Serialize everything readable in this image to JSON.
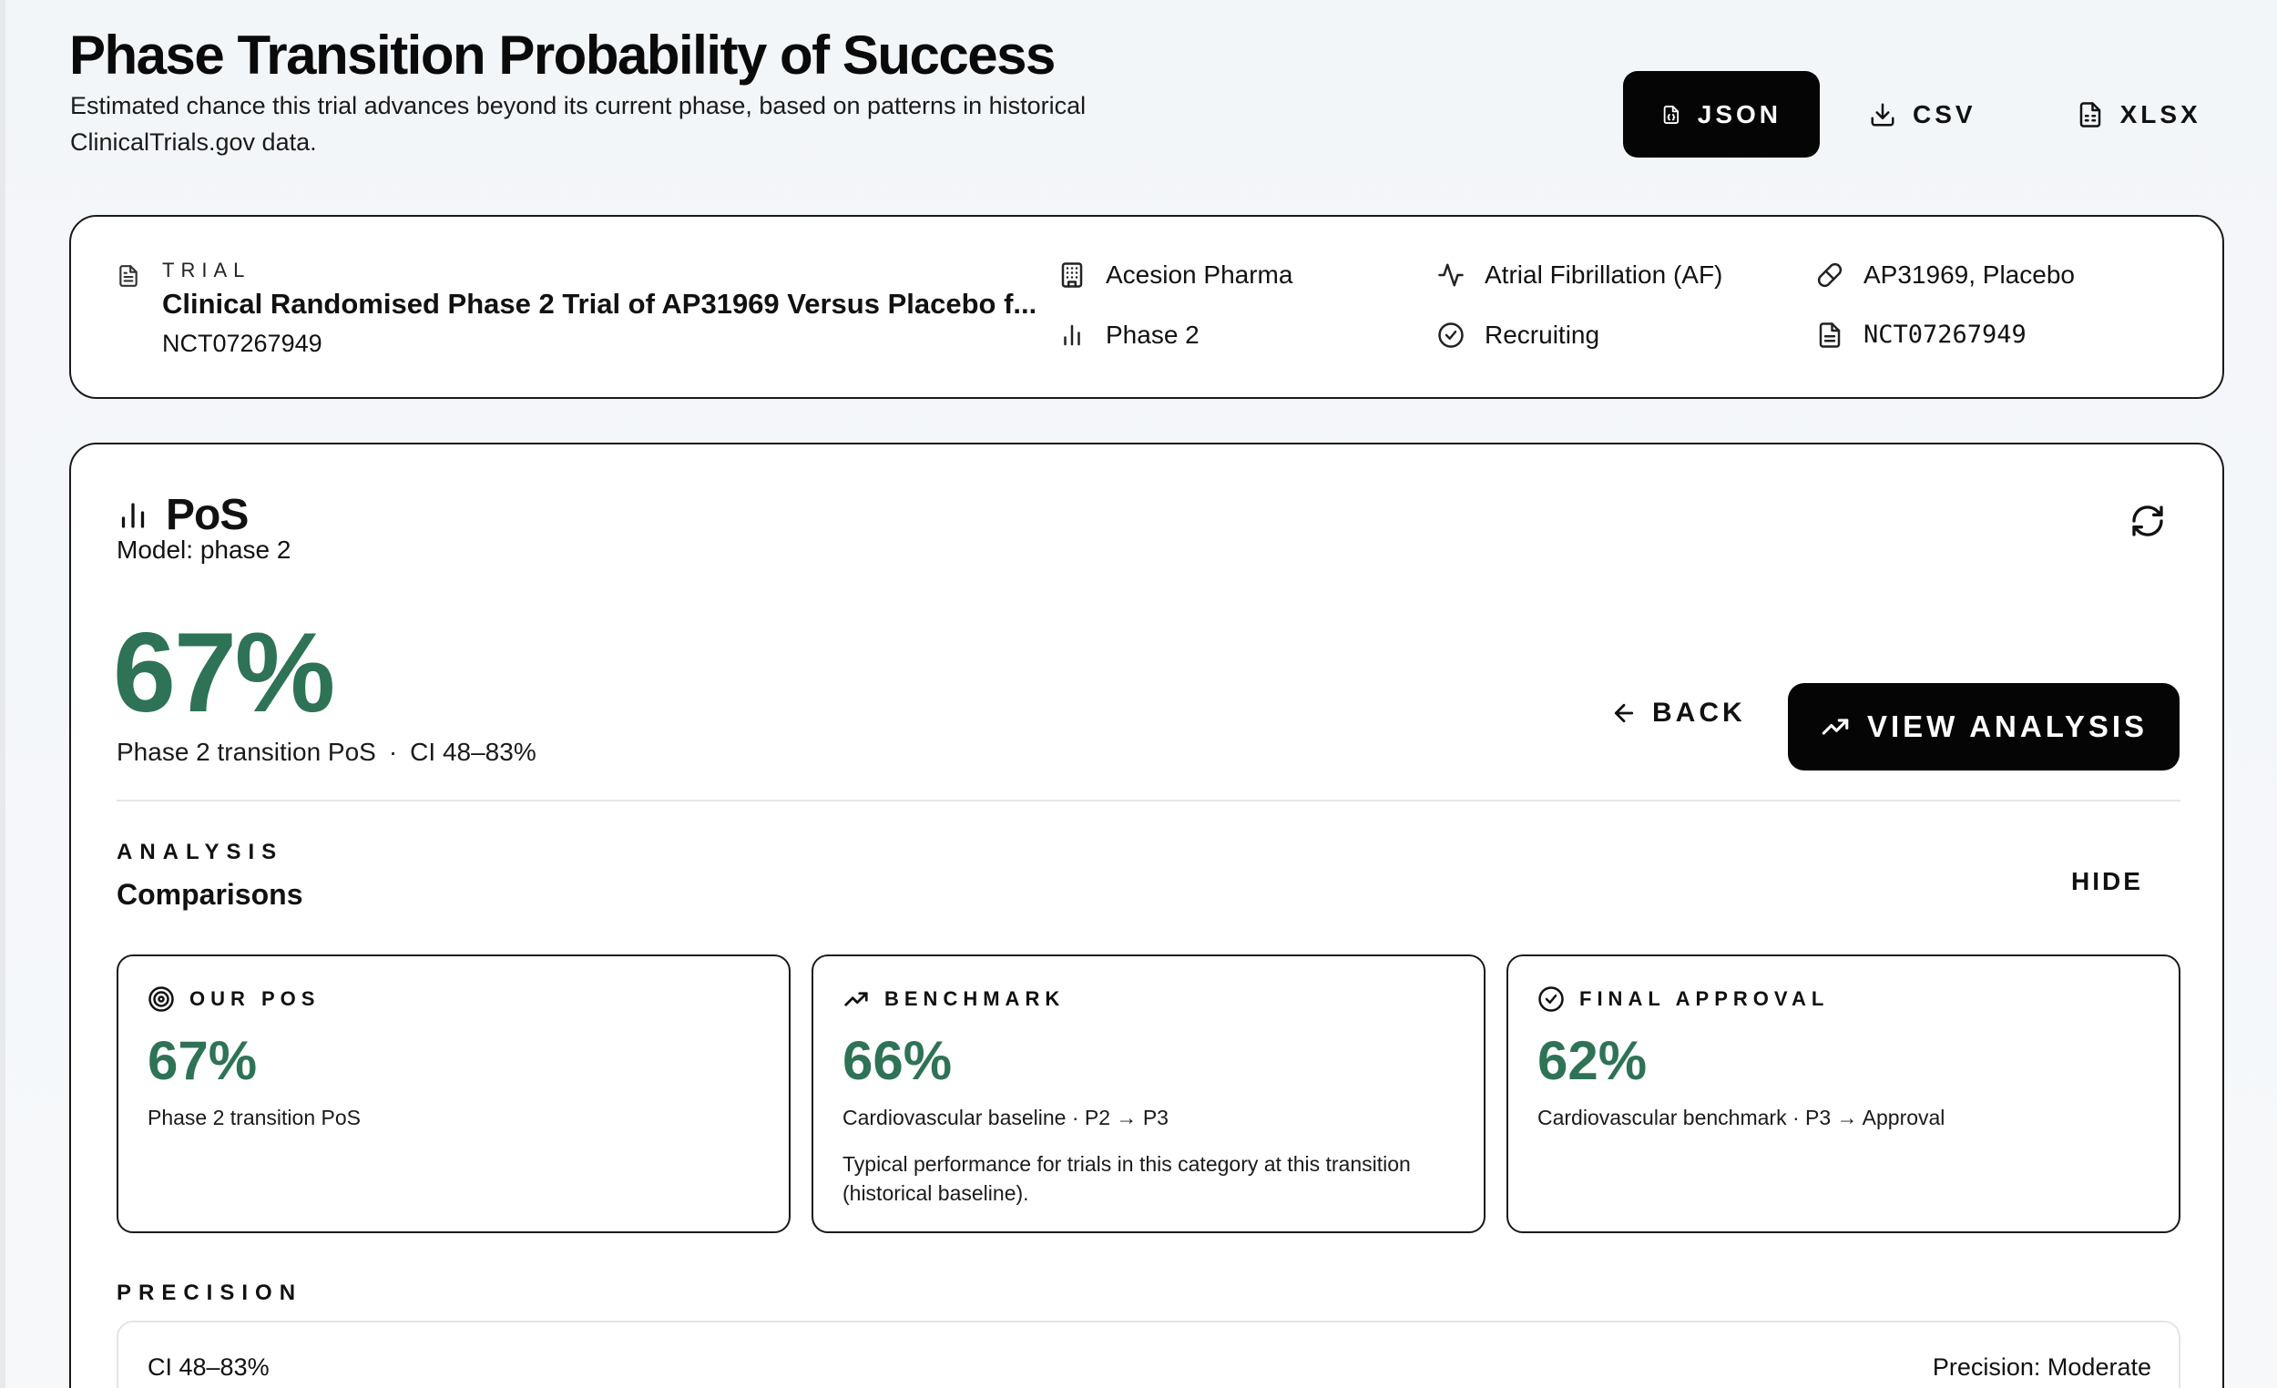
{
  "header": {
    "title": "Phase Transition Probability of Success",
    "subtitle": "Estimated chance this trial advances beyond its current phase, based on patterns in historical ClinicalTrials.gov data."
  },
  "export": {
    "json_label": "JSON",
    "csv_label": "CSV",
    "xlsx_label": "XLSX"
  },
  "trial": {
    "section_label": "TRIAL",
    "name": "Clinical Randomised Phase 2 Trial of AP31969 Versus Placebo f...",
    "nct_id": "NCT07267949",
    "sponsor": "Acesion Pharma",
    "phase": "Phase 2",
    "condition": "Atrial Fibrillation (AF)",
    "status": "Recruiting",
    "interventions": "AP31969, Placebo",
    "registry_id": "NCT07267949"
  },
  "pos": {
    "title": "PoS",
    "model": "Model: phase 2",
    "value": "67%",
    "caption": "Phase 2 transition PoS",
    "caption_sep": "·",
    "ci": "CI 48–83%",
    "back_label": "BACK",
    "view_label": "VIEW ANALYSIS"
  },
  "analysis": {
    "section_label": "ANALYSIS",
    "title": "Comparisons",
    "hide_label": "HIDE",
    "cards": [
      {
        "label": "OUR POS",
        "value": "67%",
        "sub": "Phase 2 transition PoS",
        "note": ""
      },
      {
        "label": "BENCHMARK",
        "value": "66%",
        "sub": "Cardiovascular baseline · P2 → P3",
        "note": "Typical performance for trials in this category at this transition (historical baseline)."
      },
      {
        "label": "FINAL APPROVAL",
        "value": "62%",
        "sub": "Cardiovascular benchmark · P3 → Approval",
        "note": ""
      }
    ]
  },
  "precision": {
    "section_label": "PRECISION",
    "ci": "CI 48–83%",
    "level": "Precision: Moderate"
  },
  "colors": {
    "accent_green": "#2e7355",
    "primary_button": "#050505"
  }
}
